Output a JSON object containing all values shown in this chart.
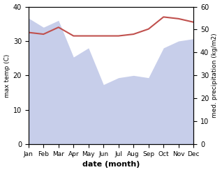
{
  "months": [
    "Jan",
    "Feb",
    "Mar",
    "Apr",
    "May",
    "Jun",
    "Jul",
    "Aug",
    "Sep",
    "Oct",
    "Nov",
    "Dec"
  ],
  "month_indices": [
    1,
    2,
    3,
    4,
    5,
    6,
    7,
    8,
    9,
    10,
    11,
    12
  ],
  "temp_max": [
    32.5,
    32.0,
    34.0,
    31.5,
    31.5,
    31.5,
    31.5,
    32.0,
    33.5,
    37.0,
    36.5,
    35.5
  ],
  "rainfall": [
    55,
    51,
    54,
    38,
    42,
    26,
    29,
    30,
    29,
    42,
    45,
    46
  ],
  "temp_ylim": [
    0,
    40
  ],
  "rain_ylim": [
    0,
    60
  ],
  "temp_color": "#c0504d",
  "rain_color": "#aab4e0",
  "rain_alpha": 0.65,
  "xlabel": "date (month)",
  "ylabel_left": "max temp (C)",
  "ylabel_right": "med. precipitation (kg/m2)",
  "temp_linewidth": 1.5,
  "left_yticks": [
    0,
    10,
    20,
    30,
    40
  ],
  "right_yticks": [
    0,
    10,
    20,
    30,
    40,
    50,
    60
  ]
}
